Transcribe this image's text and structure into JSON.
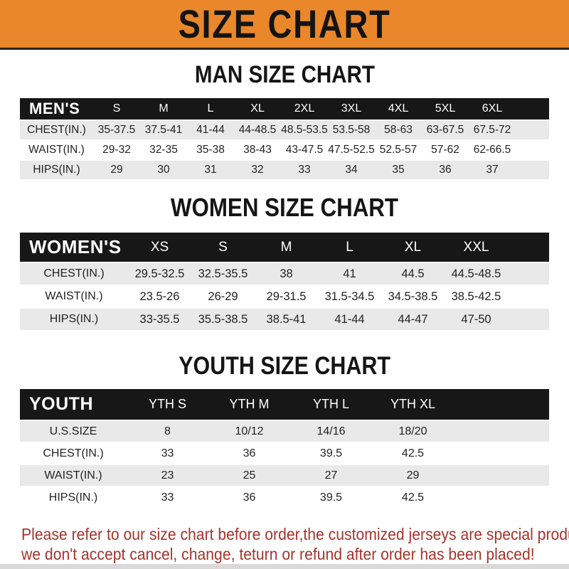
{
  "banner": {
    "title": "SIZE CHART"
  },
  "sections": [
    {
      "title": "MAN SIZE CHART",
      "header_label": "MEN'S",
      "columns": [
        "S",
        "M",
        "L",
        "XL",
        "2XL",
        "3XL",
        "4XL",
        "5XL",
        "6XL"
      ],
      "rows": [
        {
          "label": "CHEST(IN.)",
          "values": [
            "35-37.5",
            "37.5-41",
            "41-44",
            "44-48.5",
            "48.5-53.5",
            "53.5-58",
            "58-63",
            "63-67.5",
            "67.5-72"
          ]
        },
        {
          "label": "WAIST(IN.)",
          "values": [
            "29-32",
            "32-35",
            "35-38",
            "38-43",
            "43-47.5",
            "47.5-52.5",
            "52.5-57",
            "57-62",
            "62-66.5"
          ]
        },
        {
          "label": "HIPS(IN.)",
          "values": [
            "29",
            "30",
            "31",
            "32",
            "33",
            "34",
            "35",
            "36",
            "37"
          ]
        }
      ]
    },
    {
      "title": "WOMEN SIZE CHART",
      "header_label": "WOMEN'S",
      "columns": [
        "XS",
        "S",
        "M",
        "L",
        "XL",
        "XXL"
      ],
      "rows": [
        {
          "label": "CHEST(IN.)",
          "values": [
            "29.5-32.5",
            "32.5-35.5",
            "38",
            "41",
            "44.5",
            "44.5-48.5"
          ]
        },
        {
          "label": "WAIST(IN.)",
          "values": [
            "23.5-26",
            "26-29",
            "29-31.5",
            "31.5-34.5",
            "34.5-38.5",
            "38.5-42.5"
          ]
        },
        {
          "label": "HIPS(IN.)",
          "values": [
            "33-35.5",
            "35.5-38.5",
            "38.5-41",
            "41-44",
            "44-47",
            "47-50"
          ]
        }
      ]
    },
    {
      "title": "YOUTH SIZE CHART",
      "header_label": "YOUTH",
      "columns": [
        "YTH S",
        "YTH M",
        "YTH L",
        "YTH XL"
      ],
      "rows": [
        {
          "label": "U.S.SIZE",
          "values": [
            "8",
            "10/12",
            "14/16",
            "18/20"
          ]
        },
        {
          "label": "CHEST(IN.)",
          "values": [
            "33",
            "36",
            "39.5",
            "42.5"
          ]
        },
        {
          "label": "WAIST(IN.)",
          "values": [
            "23",
            "25",
            "27",
            "29"
          ]
        },
        {
          "label": "HIPS(IN.)",
          "values": [
            "33",
            "36",
            "39.5",
            "42.5"
          ]
        }
      ]
    }
  ],
  "footer": {
    "line1": "Please refer to our size chart before order,the customized jerseys are special products,",
    "line2": "we don't accept cancel, change, teturn or refund after order has been placed!"
  },
  "colors": {
    "banner_orange": "#E9872A",
    "header_black": "#171717",
    "stripe_gray": "#e9e9e9",
    "footer_red": "#A5342C"
  }
}
